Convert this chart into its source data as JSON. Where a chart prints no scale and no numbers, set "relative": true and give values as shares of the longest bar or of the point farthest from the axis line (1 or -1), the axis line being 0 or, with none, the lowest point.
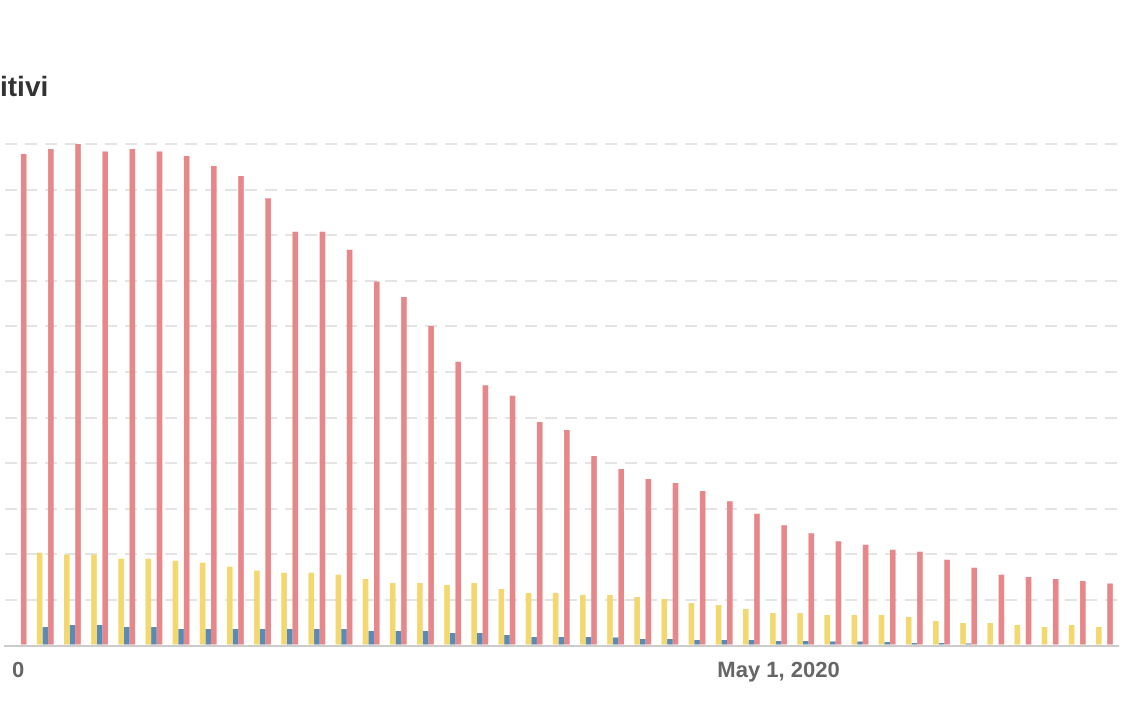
{
  "chart_data": {
    "type": "bar",
    "title": "itivi",
    "relative": true,
    "grid": "y",
    "legend": false,
    "categories": [
      "0",
      null,
      null,
      null,
      null,
      null,
      null,
      null,
      null,
      null,
      null,
      null,
      null,
      null,
      null,
      null,
      null,
      null,
      null,
      null,
      null,
      null,
      null,
      null,
      null,
      null,
      null,
      null,
      "May 1, 2020",
      null,
      null,
      null,
      null,
      null,
      null,
      null,
      null,
      null,
      null,
      null,
      null
    ],
    "series": [
      {
        "color": "#f2d86e",
        "values": [
          null,
          0.185,
          0.181,
          0.181,
          0.173,
          0.173,
          0.169,
          0.165,
          0.157,
          0.149,
          0.145,
          0.145,
          0.141,
          0.133,
          0.125,
          0.125,
          0.121,
          0.125,
          0.113,
          0.105,
          0.105,
          0.101,
          0.101,
          0.097,
          0.093,
          0.085,
          0.081,
          0.073,
          0.065,
          0.065,
          0.061,
          0.061,
          0.061,
          0.057,
          0.049,
          0.045,
          0.045,
          0.041,
          0.037,
          0.041,
          0.037
        ]
      },
      {
        "color": "#5b8ab5",
        "values": [
          null,
          0.037,
          0.041,
          0.041,
          0.037,
          0.037,
          0.033,
          0.033,
          0.033,
          0.033,
          0.033,
          0.033,
          0.033,
          0.029,
          0.029,
          0.029,
          0.025,
          0.025,
          0.021,
          0.017,
          0.017,
          0.017,
          0.016,
          0.013,
          0.013,
          0.011,
          0.011,
          0.011,
          0.009,
          0.009,
          0.008,
          0.008,
          0.007,
          0.005,
          0.005,
          0.004,
          null,
          null,
          null,
          null,
          null
        ]
      },
      {
        "color": "#e8878a",
        "values": [
          0.98,
          0.99,
          1.0,
          0.985,
          0.99,
          0.985,
          0.976,
          0.956,
          0.936,
          0.892,
          0.825,
          0.825,
          0.789,
          0.726,
          0.695,
          0.637,
          0.566,
          0.519,
          0.498,
          0.446,
          0.43,
          0.378,
          0.352,
          0.332,
          0.324,
          0.308,
          0.288,
          0.263,
          0.24,
          0.224,
          0.208,
          0.201,
          0.191,
          0.187,
          0.171,
          0.155,
          0.141,
          0.137,
          0.133,
          0.129,
          0.124
        ]
      }
    ]
  }
}
